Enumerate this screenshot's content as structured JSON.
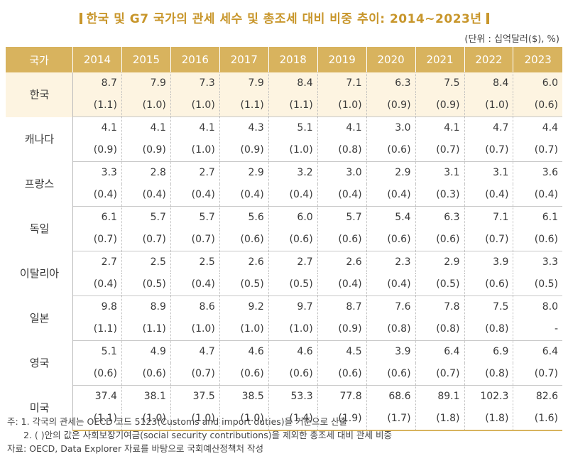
{
  "title": "한국 및 G7 국가의 관세 세수 및 총조세 대비 비중 추이: 2014~2023년",
  "unit": "(단위 : 십억달러($), %)",
  "header": {
    "country_label": "국가",
    "years": [
      "2014",
      "2015",
      "2016",
      "2017",
      "2018",
      "2019",
      "2020",
      "2021",
      "2022",
      "2023"
    ]
  },
  "rows": [
    {
      "country": "한국",
      "values": [
        "8.7",
        "7.9",
        "7.3",
        "7.9",
        "8.4",
        "7.1",
        "6.3",
        "7.5",
        "8.4",
        "6.0"
      ],
      "shares": [
        "(1.1)",
        "(1.0)",
        "(1.0)",
        "(1.1)",
        "(1.1)",
        "(1.0)",
        "(0.9)",
        "(0.9)",
        "(1.0)",
        "(0.6)"
      ]
    },
    {
      "country": "캐나다",
      "values": [
        "4.1",
        "4.1",
        "4.1",
        "4.3",
        "5.1",
        "4.1",
        "3.0",
        "4.1",
        "4.7",
        "4.4"
      ],
      "shares": [
        "(0.9)",
        "(0.9)",
        "(1.0)",
        "(0.9)",
        "(1.0)",
        "(0.8)",
        "(0.6)",
        "(0.7)",
        "(0.7)",
        "(0.7)"
      ]
    },
    {
      "country": "프랑스",
      "values": [
        "3.3",
        "2.8",
        "2.7",
        "2.9",
        "3.2",
        "3.0",
        "2.9",
        "3.1",
        "3.1",
        "3.6"
      ],
      "shares": [
        "(0.4)",
        "(0.4)",
        "(0.4)",
        "(0.4)",
        "(0.4)",
        "(0.4)",
        "(0.4)",
        "(0.3)",
        "(0.4)",
        "(0.4)"
      ]
    },
    {
      "country": "독일",
      "values": [
        "6.1",
        "5.7",
        "5.7",
        "5.6",
        "6.0",
        "5.7",
        "5.4",
        "6.3",
        "7.1",
        "6.1"
      ],
      "shares": [
        "(0.7)",
        "(0.7)",
        "(0.7)",
        "(0.6)",
        "(0.6)",
        "(0.6)",
        "(0.6)",
        "(0.6)",
        "(0.7)",
        "(0.6)"
      ]
    },
    {
      "country": "이탈리아",
      "values": [
        "2.7",
        "2.5",
        "2.5",
        "2.6",
        "2.7",
        "2.6",
        "2.3",
        "2.9",
        "3.9",
        "3.3"
      ],
      "shares": [
        "(0.4)",
        "(0.5)",
        "(0.4)",
        "(0.5)",
        "(0.5)",
        "(0.4)",
        "(0.4)",
        "(0.5)",
        "(0.6)",
        "(0.5)"
      ]
    },
    {
      "country": "일본",
      "values": [
        "9.8",
        "8.9",
        "8.6",
        "9.2",
        "9.7",
        "8.7",
        "7.6",
        "7.8",
        "7.5",
        "8.0"
      ],
      "shares": [
        "(1.1)",
        "(1.1)",
        "(1.0)",
        "(1.0)",
        "(1.0)",
        "(0.9)",
        "(0.8)",
        "(0.8)",
        "(0.8)",
        "-"
      ]
    },
    {
      "country": "영국",
      "values": [
        "5.1",
        "4.9",
        "4.7",
        "4.6",
        "4.6",
        "4.5",
        "3.9",
        "6.4",
        "6.9",
        "6.4"
      ],
      "shares": [
        "(0.6)",
        "(0.6)",
        "(0.7)",
        "(0.6)",
        "(0.6)",
        "(0.6)",
        "(0.6)",
        "(0.7)",
        "(0.8)",
        "(0.7)"
      ]
    },
    {
      "country": "미국",
      "values": [
        "37.4",
        "38.1",
        "37.5",
        "38.5",
        "53.3",
        "77.8",
        "68.6",
        "89.1",
        "102.3",
        "82.6"
      ],
      "shares": [
        "(1.1)",
        "(1.0)",
        "(1.0)",
        "(1.0)",
        "(1.4)",
        "(1.9)",
        "(1.7)",
        "(1.8)",
        "(1.8)",
        "(1.6)"
      ]
    }
  ],
  "notes": [
    "주: 1. 각국의 관세는 OECD 코드 5123(Customs and import duties)을 기준으로 산출",
    "2. ( )안의 값은 사회보장기여금(social security contributions)을 제외한 총조세 대비 관세 비중",
    "자료: OECD, Data Explorer 자료를 바탕으로 국회예산정책처 작성"
  ]
}
